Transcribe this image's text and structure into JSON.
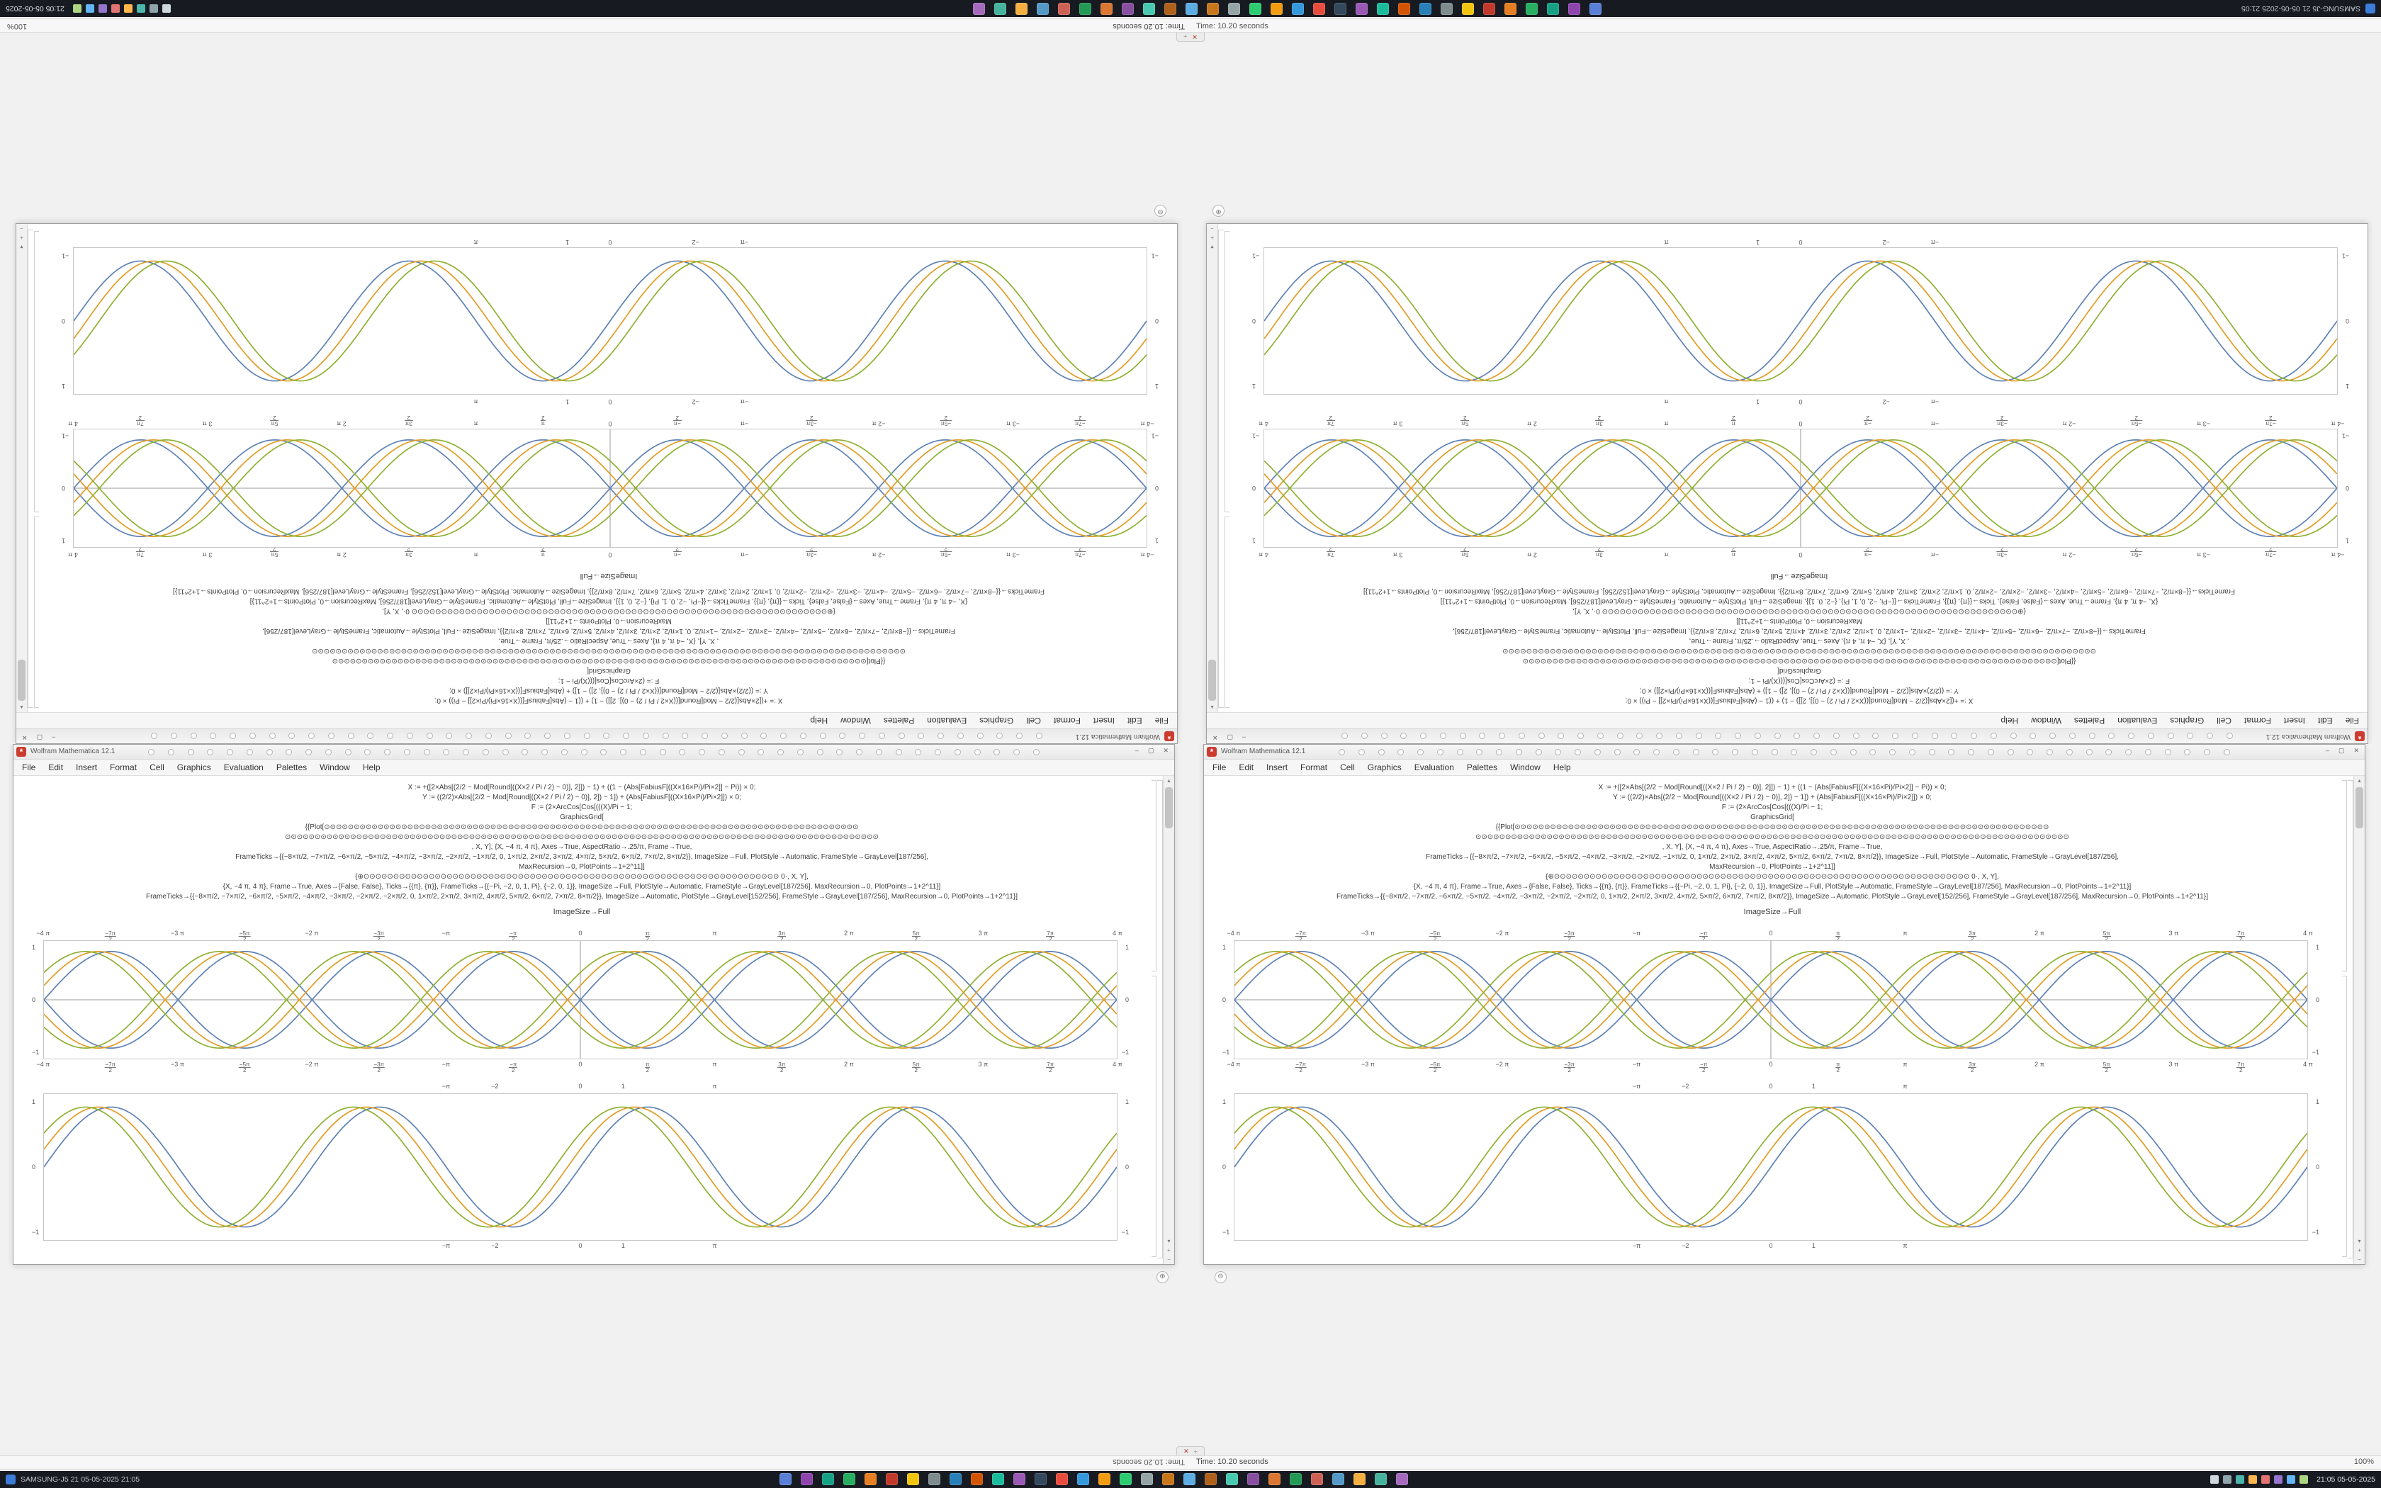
{
  "desktop": {
    "bg": "#f1f1f1",
    "taskbar": {
      "bg": "#171b21",
      "left_text": "SAMSUNG-J5  21  05-05-2025  21:05",
      "clock": "21:05  05-05-2025",
      "app_icons": [
        "#5a7fd6",
        "#8e44ad",
        "#16a085",
        "#27ae60",
        "#e67e22",
        "#c0392b",
        "#f1c40f",
        "#7f8c8d",
        "#2980b9",
        "#d35400",
        "#1abc9c",
        "#9b59b6",
        "#34495e",
        "#e74c3c",
        "#3498db",
        "#f39c12",
        "#2ecc71",
        "#95a5a6",
        "#c8761a",
        "#5dade2",
        "#af601a",
        "#48c9b0",
        "#884ea0",
        "#dc7633",
        "#229954",
        "#cd6155",
        "#5499c7",
        "#f5b041",
        "#45b39d",
        "#a569bd"
      ],
      "tray_icons": [
        "#cfd8dc",
        "#90a4ae",
        "#4db6ac",
        "#ffb74d",
        "#e57373",
        "#9575cd",
        "#64b5f6",
        "#aed581"
      ]
    },
    "statusbar": {
      "time_text": "Time: 10.20 seconds",
      "right_text": "100%"
    }
  },
  "window": {
    "title": "Wolfram Mathematica 12.1",
    "menu": [
      "File",
      "Edit",
      "Insert",
      "Format",
      "Cell",
      "Graphics",
      "Evaluation",
      "Palettes",
      "Window",
      "Help"
    ],
    "toolbar_dots": 46,
    "caption": "ImageSize→Full",
    "code_lines": [
      "X := +([2×Abs[(2/2 − Mod[Round[((X×2 / Pi / 2) − 0)], 2]]) − 1) + ((1 − (Abs[FabiusF[((X×16×Pi)/Pi×2]] − Pi)) × 0;",
      "Y := ((2/2)×Abs[(2/2 − Mod[Round[((X×2 / Pi / 2) − 0)], 2]) − 1]) + (Abs[FabiusF[((X×16×Pi)/Pi×2]]) × 0;",
      "F := (2×ArcCos[Cos[(((X)/Pi − 1;",
      "GraphicsGrid[",
      "{{Plot[⊙⊙⊙⊙⊙⊙⊙⊙⊙⊙⊙⊙⊙⊙⊙⊙⊙⊙⊙⊙⊙⊙⊙⊙⊙⊙⊙⊙⊙⊙⊙⊙⊙⊙⊙⊙⊙⊙⊙⊙⊙⊙⊙⊙⊙⊙⊙⊙⊙⊙⊙⊙⊙⊙⊙⊙⊙⊙⊙⊙⊙⊙⊙⊙⊙⊙⊙⊙⊙⊙⊙⊙⊙⊙⊙⊙⊙⊙⊙⊙⊙⊙⊙⊙⊙⊙⊙⊙⊙⊙",
      "⊙⊙⊙⊙⊙⊙⊙⊙⊙⊙⊙⊙⊙⊙⊙⊙⊙⊙⊙⊙⊙⊙⊙⊙⊙⊙⊙⊙⊙⊙⊙⊙⊙⊙⊙⊙⊙⊙⊙⊙⊙⊙⊙⊙⊙⊙⊙⊙⊙⊙⊙⊙⊙⊙⊙⊙⊙⊙⊙⊙⊙⊙⊙⊙⊙⊙⊙⊙⊙⊙⊙⊙⊙⊙⊙⊙⊙⊙⊙⊙⊙⊙⊙⊙⊙⊙⊙⊙⊙⊙⊙⊙⊙⊙⊙⊙⊙⊙⊙⊙",
      ", X, Y], {X, −4 π, 4 π}, Axes→True, AspectRatio→.25/π, Frame→True,",
      "FrameTicks→{{−8×π/2, −7×π/2, −6×π/2, −5×π/2, −4×π/2, −3×π/2, −2×π/2, −1×π/2, 0, 1×π/2, 2×π/2, 3×π/2, 4×π/2, 5×π/2, 6×π/2, 7×π/2, 8×π/2}}, ImageSize→Full, PlotStyle→Automatic, FrameStyle→GrayLevel[187/256],",
      "MaxRecursion→0, PlotPoints→1+2^11]]",
      "{⊕⊙⊙⊙⊙⊙⊙⊙⊙⊙⊙⊙⊙⊙⊙⊙⊙⊙⊙⊙⊙⊙⊙⊙⊙⊙⊙⊙⊙⊙⊙⊙⊙⊙⊙⊙⊙⊙⊙⊙⊙⊙⊙⊙⊙⊙⊙⊙⊙⊙⊙⊙⊙⊙⊙⊙⊙⊙⊙⊙⊙⊙⊙⊙⊙⊙⊙⊙⊙⊙⊙ 0·, X, Y],",
      "{X, −4 π, 4 π}, Frame→True, Axes→{False, False}, Ticks→{{π}, {π}}, FrameTicks→{{−Pi, −2, 0, 1, Pi}, {−2, 0, 1}}, ImageSize→Full, PlotStyle→Automatic, FrameStyle→GrayLevel[187/256], MaxRecursion→0, PlotPoints→1+2^11}]",
      "FrameTicks→{{−8×π/2, −7×π/2, −6×π/2, −5×π/2, −4×π/2, −3×π/2, −2×π/2, −2×π/2, 0, 1×π/2, 2×π/2, 3×π/2, 4×π/2, 5×π/2, 6×π/2, 7×π/2, 8×π/2}}, ImageSize→Automatic, PlotStyle→GrayLevel[152/256], FrameStyle→GrayLevel[187/256], MaxRecursion→0, PlotPoints→1+2^11}]"
    ]
  },
  "icons": {
    "spikey": "*",
    "minimize": "–",
    "maximize": "▢",
    "close": "✕",
    "up": "▴",
    "down": "▾",
    "zoom_in": "+",
    "zoom_out": "−",
    "circle_plus": "⊕",
    "circle_minus": "⊖",
    "panel_close": "✕",
    "panel_plus": "+"
  },
  "chart_data": [
    {
      "id": "braid",
      "type": "line",
      "title": "",
      "x_range": [
        -12.5664,
        12.5664
      ],
      "ylim": [
        -1.12,
        1.12
      ],
      "frame": true,
      "axes": true,
      "xtick_labels": [
        "−4 π",
        "−7π/2",
        "−3 π",
        "−5π/2",
        "−2 π",
        "−3π/2",
        "−π",
        "−π/2",
        "0",
        "π/2",
        "π",
        "3π/2",
        "2 π",
        "5π/2",
        "3 π",
        "7π/2",
        "4 π"
      ],
      "yticks": [
        {
          "y": 1,
          "label": "1"
        },
        {
          "y": 0,
          "label": "0"
        },
        {
          "y": -1,
          "label": "−1"
        }
      ],
      "series": [
        {
          "name": "sin(x)",
          "color": "#5e81b5",
          "phase": 0,
          "sign": 1
        },
        {
          "name": "-sin(x)",
          "color": "#5e81b5",
          "phase": 0,
          "sign": -1
        },
        {
          "name": "sin(x+0.3)",
          "color": "#e19c24",
          "phase": 0.3,
          "sign": 1
        },
        {
          "name": "-sin(x+0.3)",
          "color": "#e19c24",
          "phase": 0.3,
          "sign": -1
        },
        {
          "name": "sin(x+0.6)",
          "color": "#8fb032",
          "phase": 0.6,
          "sign": 1
        },
        {
          "name": "-sin(x+0.6)",
          "color": "#8fb032",
          "phase": 0.6,
          "sign": -1
        }
      ]
    },
    {
      "id": "sine",
      "type": "line",
      "title": "",
      "x_range": [
        -12.5664,
        12.5664
      ],
      "ylim": [
        -1.12,
        1.12
      ],
      "frame": true,
      "axes": false,
      "xticks": [
        {
          "x": -3.14159,
          "label": "−π"
        },
        {
          "x": -2,
          "label": "−2"
        },
        {
          "x": 0,
          "label": "0"
        },
        {
          "x": 1,
          "label": "1"
        },
        {
          "x": 3.14159,
          "label": "π"
        }
      ],
      "yticks": [
        {
          "y": 1,
          "label": "1"
        },
        {
          "y": 0,
          "label": "0"
        },
        {
          "y": -1,
          "label": "−1"
        }
      ],
      "series": [
        {
          "name": "sin(x)",
          "color": "#5e81b5",
          "phase": 0,
          "sign": 1
        },
        {
          "name": "sin(x+0.3)",
          "color": "#e19c24",
          "phase": 0.3,
          "sign": 1
        },
        {
          "name": "sin(x+0.6)",
          "color": "#8fb032",
          "phase": 0.6,
          "sign": 1
        }
      ]
    }
  ]
}
